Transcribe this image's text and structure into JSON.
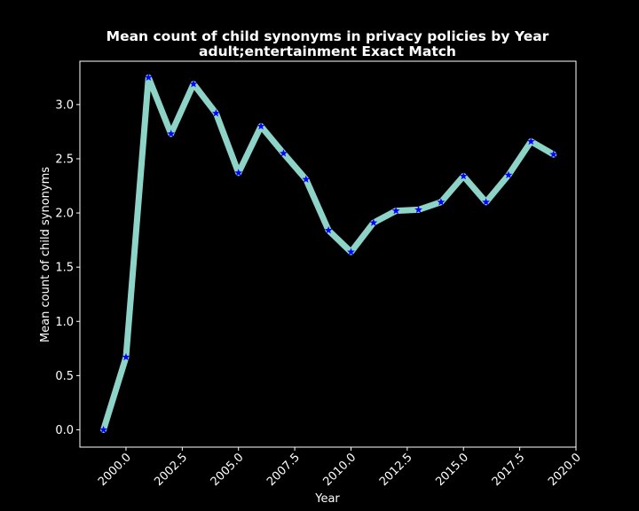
{
  "chart_data": {
    "type": "line",
    "title": "Mean count of child synonyms in privacy policies by Year",
    "subtitle": "adult;entertainment Exact Match",
    "xlabel": "Year",
    "ylabel": "Mean count of child synonyms",
    "xlim": [
      1997.95,
      2020.0
    ],
    "ylim": [
      -0.16,
      3.4
    ],
    "x_ticks": [
      2000.0,
      2002.5,
      2005.0,
      2007.5,
      2010.0,
      2012.5,
      2015.0,
      2017.5,
      2020.0
    ],
    "y_ticks": [
      0.0,
      0.5,
      1.0,
      1.5,
      2.0,
      2.5,
      3.0
    ],
    "grid": false,
    "series": [
      {
        "x": [
          1999,
          2000,
          2001,
          2002,
          2003,
          2004,
          2005,
          2006,
          2007,
          2008,
          2009,
          2010,
          2011,
          2012,
          2013,
          2014,
          2015,
          2016,
          2017,
          2018,
          2019
        ],
        "values": [
          0.0,
          0.67,
          3.25,
          2.73,
          3.19,
          2.92,
          2.37,
          2.8,
          2.55,
          2.31,
          1.84,
          1.64,
          1.91,
          2.02,
          2.03,
          2.1,
          2.34,
          2.1,
          2.35,
          2.66,
          2.54
        ],
        "line_color": "#8dd3c7",
        "marker": "star",
        "marker_color": "#0000ff"
      }
    ]
  }
}
